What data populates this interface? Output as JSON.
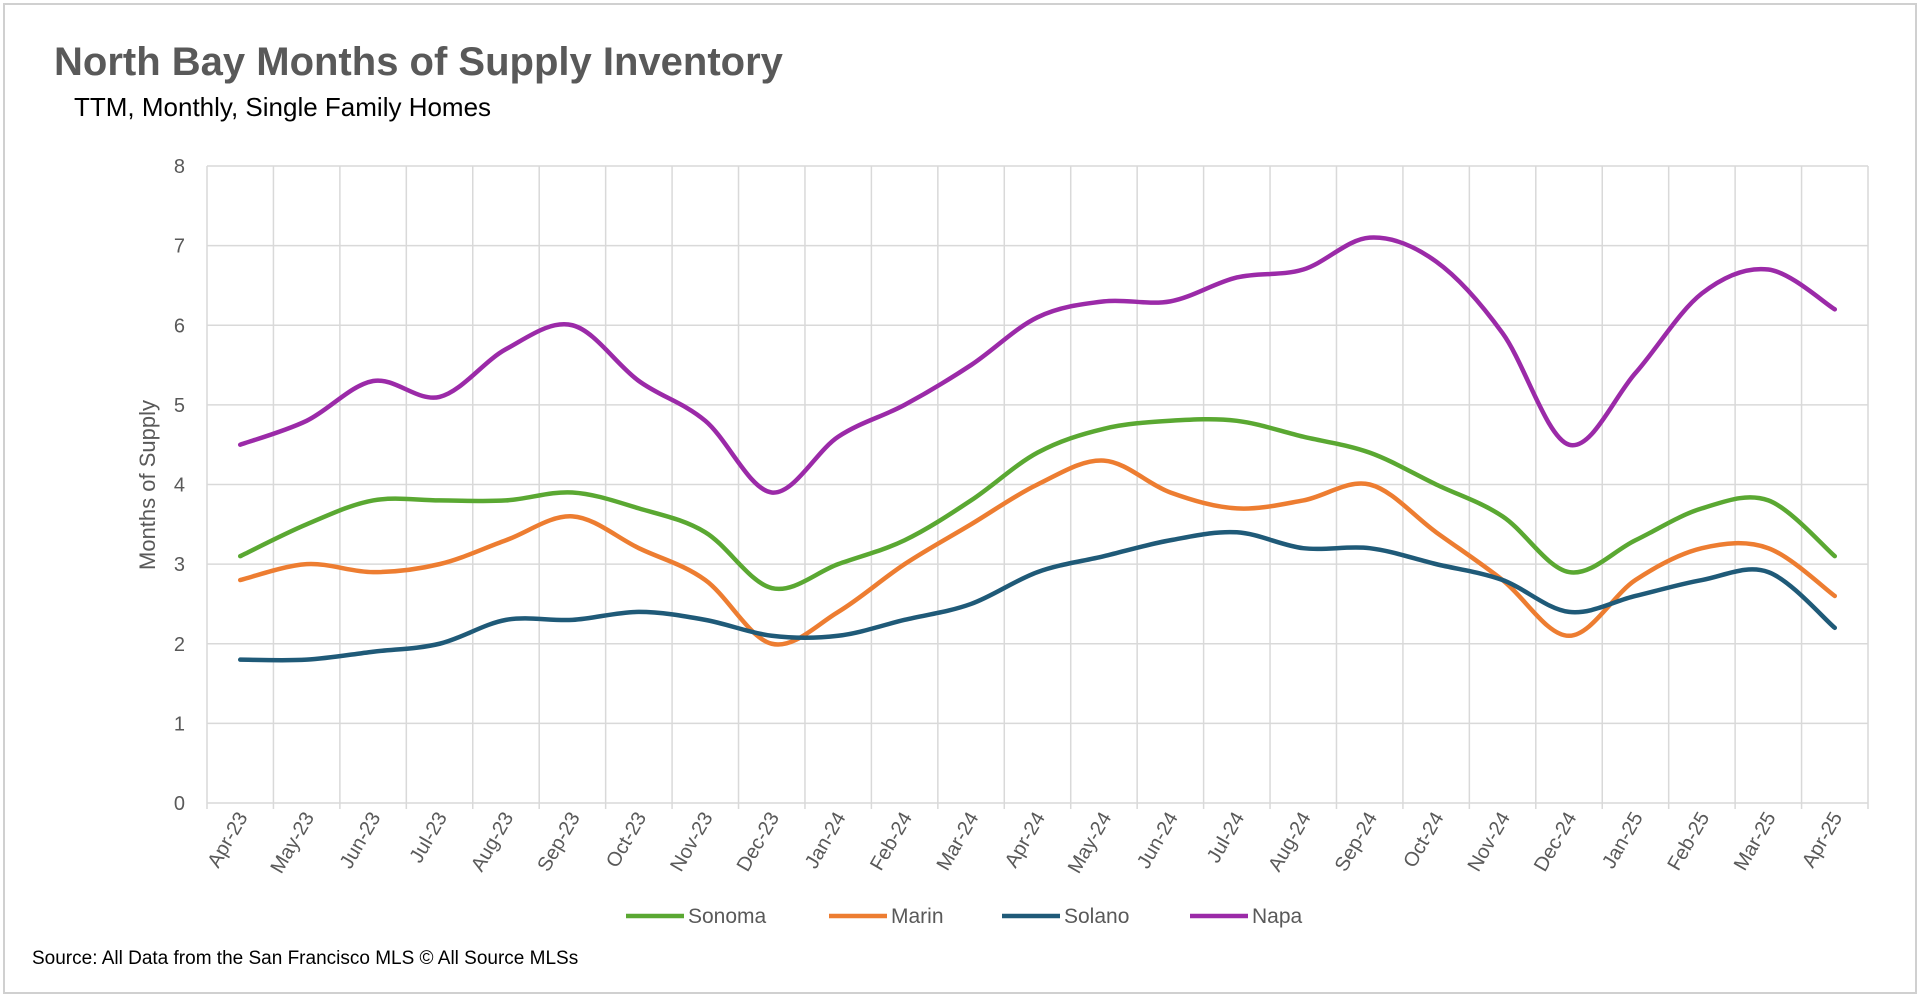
{
  "title": "North Bay Months of Supply Inventory",
  "subtitle": "TTM, Monthly, Single Family Homes",
  "source": "Source: All Data from the San Francisco MLS © All Source MLSs",
  "chart_data": {
    "type": "line",
    "title": "North Bay Months of Supply Inventory",
    "subtitle": "TTM, Monthly, Single Family Homes",
    "xlabel": "",
    "ylabel": "Months of Supply",
    "ylim": [
      0,
      8
    ],
    "yticks": [
      0,
      1,
      2,
      3,
      4,
      5,
      6,
      7,
      8
    ],
    "grid": true,
    "legend_position": "bottom",
    "smooth": true,
    "categories": [
      "Apr-23",
      "May-23",
      "Jun-23",
      "Jul-23",
      "Aug-23",
      "Sep-23",
      "Oct-23",
      "Nov-23",
      "Dec-23",
      "Jan-24",
      "Feb-24",
      "Mar-24",
      "Apr-24",
      "May-24",
      "Jun-24",
      "Jul-24",
      "Aug-24",
      "Sep-24",
      "Oct-24",
      "Nov-24",
      "Dec-24",
      "Jan-25",
      "Feb-25",
      "Mar-25",
      "Apr-25"
    ],
    "series": [
      {
        "name": "Sonoma",
        "color": "#5aa832",
        "values": [
          3.1,
          3.5,
          3.8,
          3.8,
          3.8,
          3.9,
          3.7,
          3.4,
          2.7,
          3.0,
          3.3,
          3.8,
          4.4,
          4.7,
          4.8,
          4.8,
          4.6,
          4.4,
          4.0,
          3.6,
          2.9,
          3.3,
          3.7,
          3.8,
          3.1
        ]
      },
      {
        "name": "Marin",
        "color": "#ed7d31",
        "values": [
          2.8,
          3.0,
          2.9,
          3.0,
          3.3,
          3.6,
          3.2,
          2.8,
          2.0,
          2.4,
          3.0,
          3.5,
          4.0,
          4.3,
          3.9,
          3.7,
          3.8,
          4.0,
          3.4,
          2.8,
          2.1,
          2.8,
          3.2,
          3.2,
          2.6
        ]
      },
      {
        "name": "Solano",
        "color": "#1f5a78",
        "values": [
          1.8,
          1.8,
          1.9,
          2.0,
          2.3,
          2.3,
          2.4,
          2.3,
          2.1,
          2.1,
          2.3,
          2.5,
          2.9,
          3.1,
          3.3,
          3.4,
          3.2,
          3.2,
          3.0,
          2.8,
          2.4,
          2.6,
          2.8,
          2.9,
          2.2
        ]
      },
      {
        "name": "Napa",
        "color": "#9b2aa8",
        "values": [
          4.5,
          4.8,
          5.3,
          5.1,
          5.7,
          6.0,
          5.3,
          4.8,
          3.9,
          4.6,
          5.0,
          5.5,
          6.1,
          6.3,
          6.3,
          6.6,
          6.7,
          7.1,
          6.8,
          5.9,
          4.5,
          5.4,
          6.4,
          6.7,
          6.2
        ]
      }
    ]
  }
}
